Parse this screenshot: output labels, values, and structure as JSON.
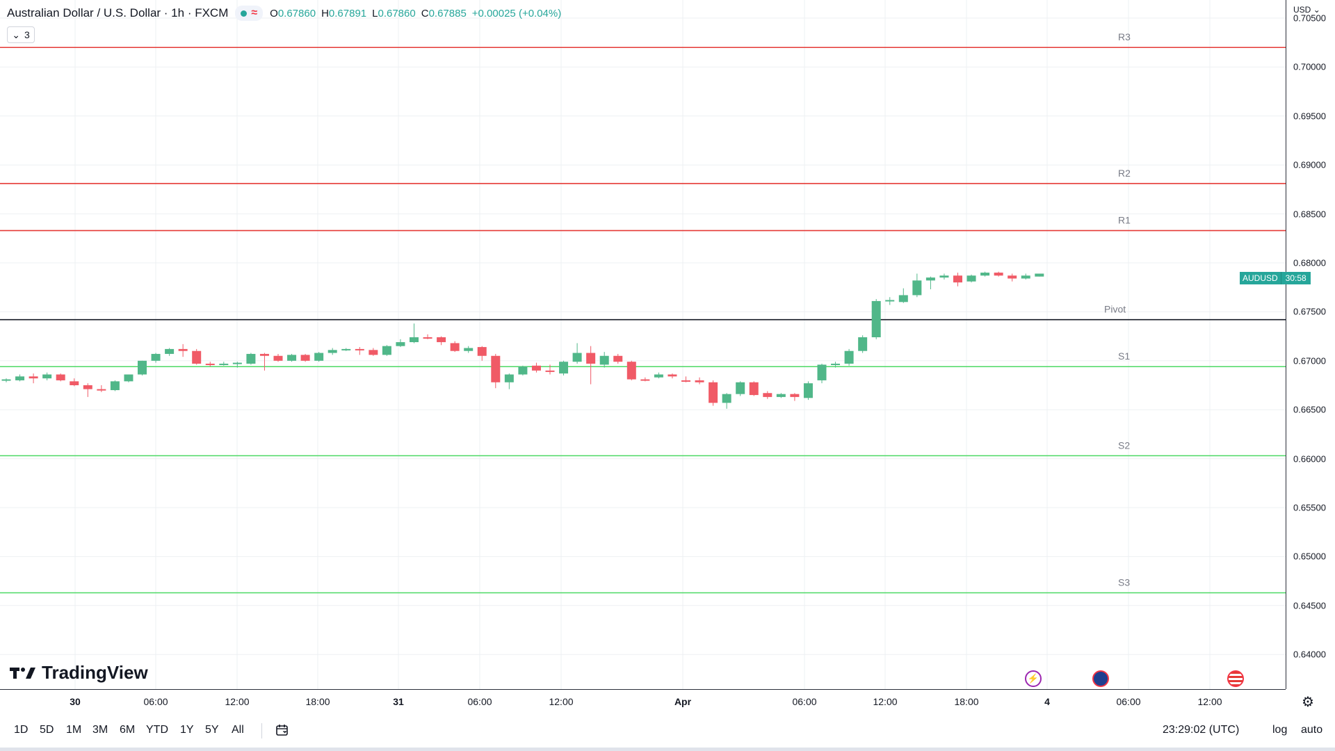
{
  "legend": {
    "title": "Australian Dollar / U.S. Dollar · 1h · FXCM",
    "wave_icon": "≈",
    "open_label": "O",
    "open": "0.67860",
    "high_label": "H",
    "high": "0.67891",
    "low_label": "L",
    "low": "0.67860",
    "close_label": "C",
    "close": "0.67885",
    "change": "+0.00025 (+0.04%)",
    "indicator_count": "3"
  },
  "colors": {
    "up": "#26a69a",
    "up_candle": "#50b789",
    "down": "#f05a66",
    "resistance": "#e53935",
    "support": "#4cd964",
    "pivot": "#131722",
    "grid": "#eef0f3"
  },
  "brand": {
    "name": "TradingView"
  },
  "price_axis": {
    "currency": "USD",
    "ticks": [
      "0.70500",
      "0.70000",
      "0.69500",
      "0.69000",
      "0.68500",
      "0.68000",
      "0.67500",
      "0.67000",
      "0.66500",
      "0.66000",
      "0.65500",
      "0.65000",
      "0.64500",
      "0.64000"
    ]
  },
  "price_badge": {
    "symbol": "AUDUSD",
    "countdown": "30:58"
  },
  "time_axis": {
    "ticks": [
      "30",
      "06:00",
      "12:00",
      "18:00",
      "31",
      "06:00",
      "12:00",
      "Apr",
      "06:00",
      "12:00",
      "18:00",
      "4",
      "06:00",
      "12:00"
    ]
  },
  "toolbar": {
    "ranges": [
      "1D",
      "5D",
      "1M",
      "3M",
      "6M",
      "YTD",
      "1Y",
      "5Y",
      "All"
    ],
    "clock": "23:29:02 (UTC)",
    "log": "log",
    "auto": "auto"
  },
  "chart_data": {
    "type": "candlestick",
    "interval": "1h",
    "ylim": [
      0.6385,
      0.7055
    ],
    "pivot_levels": [
      {
        "name": "R3",
        "value": 0.702,
        "kind": "resistance"
      },
      {
        "name": "R2",
        "value": 0.6881,
        "kind": "resistance"
      },
      {
        "name": "R1",
        "value": 0.6833,
        "kind": "resistance"
      },
      {
        "name": "Pivot",
        "value": 0.6742,
        "kind": "pivot"
      },
      {
        "name": "S1",
        "value": 0.6694,
        "kind": "support"
      },
      {
        "name": "S2",
        "value": 0.6603,
        "kind": "support"
      },
      {
        "name": "S3",
        "value": 0.6463,
        "kind": "support"
      }
    ],
    "candles": [
      {
        "o": 0.668,
        "h": 0.6682,
        "l": 0.6678,
        "c": 0.6681
      },
      {
        "o": 0.668,
        "h": 0.6686,
        "l": 0.6679,
        "c": 0.6684
      },
      {
        "o": 0.6684,
        "h": 0.6687,
        "l": 0.6677,
        "c": 0.6682
      },
      {
        "o": 0.6682,
        "h": 0.6688,
        "l": 0.668,
        "c": 0.6686
      },
      {
        "o": 0.6686,
        "h": 0.6687,
        "l": 0.6679,
        "c": 0.668
      },
      {
        "o": 0.6679,
        "h": 0.6682,
        "l": 0.6674,
        "c": 0.6675
      },
      {
        "o": 0.6675,
        "h": 0.6677,
        "l": 0.6663,
        "c": 0.6671
      },
      {
        "o": 0.6671,
        "h": 0.6675,
        "l": 0.6668,
        "c": 0.667
      },
      {
        "o": 0.667,
        "h": 0.668,
        "l": 0.6669,
        "c": 0.6679
      },
      {
        "o": 0.6679,
        "h": 0.6686,
        "l": 0.6678,
        "c": 0.6686
      },
      {
        "o": 0.6686,
        "h": 0.67,
        "l": 0.6685,
        "c": 0.67
      },
      {
        "o": 0.67,
        "h": 0.6708,
        "l": 0.6698,
        "c": 0.6707
      },
      {
        "o": 0.6707,
        "h": 0.6713,
        "l": 0.6705,
        "c": 0.6712
      },
      {
        "o": 0.6712,
        "h": 0.6717,
        "l": 0.6704,
        "c": 0.671
      },
      {
        "o": 0.671,
        "h": 0.6712,
        "l": 0.6696,
        "c": 0.6697
      },
      {
        "o": 0.6697,
        "h": 0.6699,
        "l": 0.6694,
        "c": 0.6696
      },
      {
        "o": 0.6696,
        "h": 0.6699,
        "l": 0.6695,
        "c": 0.6697
      },
      {
        "o": 0.6697,
        "h": 0.6699,
        "l": 0.6693,
        "c": 0.6698
      },
      {
        "o": 0.6697,
        "h": 0.6708,
        "l": 0.6696,
        "c": 0.6707
      },
      {
        "o": 0.6707,
        "h": 0.6708,
        "l": 0.669,
        "c": 0.6705
      },
      {
        "o": 0.6705,
        "h": 0.6707,
        "l": 0.6699,
        "c": 0.67
      },
      {
        "o": 0.67,
        "h": 0.6707,
        "l": 0.6699,
        "c": 0.6706
      },
      {
        "o": 0.6706,
        "h": 0.6707,
        "l": 0.6699,
        "c": 0.67
      },
      {
        "o": 0.67,
        "h": 0.6709,
        "l": 0.6699,
        "c": 0.6708
      },
      {
        "o": 0.6708,
        "h": 0.6713,
        "l": 0.6706,
        "c": 0.6711
      },
      {
        "o": 0.6711,
        "h": 0.6713,
        "l": 0.671,
        "c": 0.6712
      },
      {
        "o": 0.6712,
        "h": 0.6714,
        "l": 0.6706,
        "c": 0.6711
      },
      {
        "o": 0.6711,
        "h": 0.6713,
        "l": 0.6705,
        "c": 0.6706
      },
      {
        "o": 0.6706,
        "h": 0.6716,
        "l": 0.6705,
        "c": 0.6715
      },
      {
        "o": 0.6715,
        "h": 0.6722,
        "l": 0.6714,
        "c": 0.6719
      },
      {
        "o": 0.6719,
        "h": 0.6738,
        "l": 0.6718,
        "c": 0.6724
      },
      {
        "o": 0.6724,
        "h": 0.6727,
        "l": 0.6722,
        "c": 0.6723
      },
      {
        "o": 0.6724,
        "h": 0.6725,
        "l": 0.6716,
        "c": 0.6719
      },
      {
        "o": 0.6718,
        "h": 0.672,
        "l": 0.6709,
        "c": 0.671
      },
      {
        "o": 0.671,
        "h": 0.6715,
        "l": 0.6708,
        "c": 0.6713
      },
      {
        "o": 0.6714,
        "h": 0.6715,
        "l": 0.67,
        "c": 0.6705
      },
      {
        "o": 0.6705,
        "h": 0.6707,
        "l": 0.6672,
        "c": 0.6678
      },
      {
        "o": 0.6678,
        "h": 0.6687,
        "l": 0.6671,
        "c": 0.6686
      },
      {
        "o": 0.6686,
        "h": 0.6695,
        "l": 0.6685,
        "c": 0.6694
      },
      {
        "o": 0.6695,
        "h": 0.6698,
        "l": 0.6688,
        "c": 0.669
      },
      {
        "o": 0.669,
        "h": 0.6696,
        "l": 0.6686,
        "c": 0.6689
      },
      {
        "o": 0.6687,
        "h": 0.67,
        "l": 0.6685,
        "c": 0.6699
      },
      {
        "o": 0.6699,
        "h": 0.6718,
        "l": 0.6697,
        "c": 0.6708
      },
      {
        "o": 0.6708,
        "h": 0.6715,
        "l": 0.6676,
        "c": 0.6697
      },
      {
        "o": 0.6696,
        "h": 0.6709,
        "l": 0.6693,
        "c": 0.6705
      },
      {
        "o": 0.6705,
        "h": 0.6707,
        "l": 0.6697,
        "c": 0.6699
      },
      {
        "o": 0.6699,
        "h": 0.67,
        "l": 0.668,
        "c": 0.6681
      },
      {
        "o": 0.6681,
        "h": 0.6683,
        "l": 0.6679,
        "c": 0.668
      },
      {
        "o": 0.6683,
        "h": 0.6688,
        "l": 0.6682,
        "c": 0.6686
      },
      {
        "o": 0.6686,
        "h": 0.6687,
        "l": 0.6682,
        "c": 0.6684
      },
      {
        "o": 0.668,
        "h": 0.6684,
        "l": 0.6678,
        "c": 0.6679
      },
      {
        "o": 0.668,
        "h": 0.6683,
        "l": 0.6676,
        "c": 0.6678
      },
      {
        "o": 0.6678,
        "h": 0.668,
        "l": 0.6654,
        "c": 0.6657
      },
      {
        "o": 0.6657,
        "h": 0.6667,
        "l": 0.6651,
        "c": 0.6666
      },
      {
        "o": 0.6666,
        "h": 0.6679,
        "l": 0.6664,
        "c": 0.6678
      },
      {
        "o": 0.6678,
        "h": 0.6679,
        "l": 0.6664,
        "c": 0.6665
      },
      {
        "o": 0.6667,
        "h": 0.6669,
        "l": 0.6661,
        "c": 0.6663
      },
      {
        "o": 0.6663,
        "h": 0.6667,
        "l": 0.6662,
        "c": 0.6666
      },
      {
        "o": 0.6666,
        "h": 0.6667,
        "l": 0.6659,
        "c": 0.6663
      },
      {
        "o": 0.6662,
        "h": 0.6679,
        "l": 0.666,
        "c": 0.6677
      },
      {
        "o": 0.668,
        "h": 0.6697,
        "l": 0.6677,
        "c": 0.6696
      },
      {
        "o": 0.6696,
        "h": 0.6699,
        "l": 0.6693,
        "c": 0.6697
      },
      {
        "o": 0.6697,
        "h": 0.6712,
        "l": 0.6695,
        "c": 0.671
      },
      {
        "o": 0.671,
        "h": 0.6726,
        "l": 0.6708,
        "c": 0.6724
      },
      {
        "o": 0.6724,
        "h": 0.6763,
        "l": 0.6722,
        "c": 0.6761
      },
      {
        "o": 0.6761,
        "h": 0.6765,
        "l": 0.6757,
        "c": 0.6762
      },
      {
        "o": 0.676,
        "h": 0.6774,
        "l": 0.6759,
        "c": 0.6767
      },
      {
        "o": 0.6767,
        "h": 0.6789,
        "l": 0.6765,
        "c": 0.6782
      },
      {
        "o": 0.6782,
        "h": 0.6786,
        "l": 0.6773,
        "c": 0.6785
      },
      {
        "o": 0.6785,
        "h": 0.6789,
        "l": 0.6783,
        "c": 0.6787
      },
      {
        "o": 0.6787,
        "h": 0.679,
        "l": 0.6776,
        "c": 0.678
      },
      {
        "o": 0.6781,
        "h": 0.6788,
        "l": 0.678,
        "c": 0.6787
      },
      {
        "o": 0.6787,
        "h": 0.6791,
        "l": 0.6786,
        "c": 0.679
      },
      {
        "o": 0.679,
        "h": 0.6791,
        "l": 0.6786,
        "c": 0.6787
      },
      {
        "o": 0.6787,
        "h": 0.6789,
        "l": 0.6781,
        "c": 0.6784
      },
      {
        "o": 0.6784,
        "h": 0.6789,
        "l": 0.6783,
        "c": 0.6787
      },
      {
        "o": 0.6786,
        "h": 0.6789,
        "l": 0.6786,
        "c": 0.6789
      }
    ]
  }
}
